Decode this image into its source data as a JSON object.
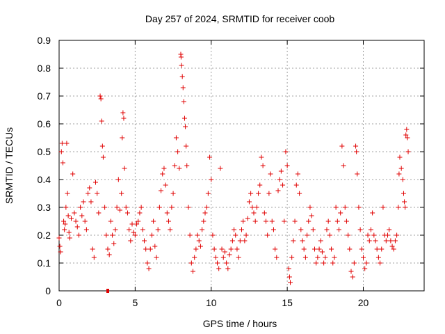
{
  "chart_data": {
    "type": "scatter",
    "title": "Day 257 of 2024, SRMTID for receiver coob",
    "xlabel": "GPS time / hours",
    "ylabel": "SRMTID / TECUs",
    "xlim": [
      0,
      24
    ],
    "ylim": [
      0,
      0.9
    ],
    "xticks": [
      0,
      5,
      10,
      15,
      20
    ],
    "xtick_labels": [
      "0",
      "5",
      "10",
      "15",
      "20"
    ],
    "yticks": [
      0,
      0.1,
      0.2,
      0.3,
      0.4,
      0.5,
      0.6,
      0.7,
      0.8,
      0.9
    ],
    "ytick_labels": [
      "0",
      "0.1",
      "0.2",
      "0.3",
      "0.4",
      "0.5",
      "0.6",
      "0.7",
      "0.8",
      "0.9"
    ],
    "grid": true,
    "marker": "+",
    "series_color": "#e00000",
    "series": [
      {
        "name": "SRMTID",
        "points": [
          [
            0.0,
            0.19
          ],
          [
            0.05,
            0.16
          ],
          [
            0.1,
            0.14
          ],
          [
            0.15,
            0.5
          ],
          [
            0.2,
            0.53
          ],
          [
            0.25,
            0.46
          ],
          [
            0.3,
            0.25
          ],
          [
            0.35,
            0.22
          ],
          [
            0.4,
            0.24
          ],
          [
            0.45,
            0.3
          ],
          [
            0.5,
            0.53
          ],
          [
            0.55,
            0.35
          ],
          [
            0.6,
            0.27
          ],
          [
            0.65,
            0.21
          ],
          [
            0.7,
            0.19
          ],
          [
            0.8,
            0.26
          ],
          [
            0.9,
            0.42
          ],
          [
            1.0,
            0.28
          ],
          [
            1.1,
            0.25
          ],
          [
            1.2,
            0.23
          ],
          [
            1.3,
            0.2
          ],
          [
            1.4,
            0.3
          ],
          [
            1.5,
            0.27
          ],
          [
            1.6,
            0.32
          ],
          [
            1.7,
            0.25
          ],
          [
            1.8,
            0.22
          ],
          [
            1.9,
            0.35
          ],
          [
            2.0,
            0.37
          ],
          [
            2.1,
            0.32
          ],
          [
            2.2,
            0.15
          ],
          [
            2.3,
            0.12
          ],
          [
            2.4,
            0.39
          ],
          [
            2.5,
            0.35
          ],
          [
            2.6,
            0.28
          ],
          [
            2.7,
            0.7
          ],
          [
            2.75,
            0.69
          ],
          [
            2.8,
            0.61
          ],
          [
            2.85,
            0.52
          ],
          [
            2.9,
            0.48
          ],
          [
            3.0,
            0.3
          ],
          [
            3.1,
            0.2
          ],
          [
            3.2,
            0.15
          ],
          [
            3.3,
            0.13
          ],
          [
            3.4,
            0.25
          ],
          [
            3.5,
            0.2
          ],
          [
            3.6,
            0.17
          ],
          [
            3.7,
            0.22
          ],
          [
            3.8,
            0.3
          ],
          [
            3.9,
            0.4
          ],
          [
            4.0,
            0.29
          ],
          [
            4.1,
            0.35
          ],
          [
            4.15,
            0.55
          ],
          [
            4.2,
            0.64
          ],
          [
            4.25,
            0.62
          ],
          [
            4.3,
            0.44
          ],
          [
            4.4,
            0.3
          ],
          [
            4.5,
            0.28
          ],
          [
            4.6,
            0.22
          ],
          [
            4.7,
            0.18
          ],
          [
            4.8,
            0.24
          ],
          [
            4.9,
            0.21
          ],
          [
            5.0,
            0.2
          ],
          [
            5.1,
            0.24
          ],
          [
            5.2,
            0.25
          ],
          [
            5.3,
            0.28
          ],
          [
            5.4,
            0.3
          ],
          [
            5.5,
            0.22
          ],
          [
            5.6,
            0.18
          ],
          [
            5.7,
            0.15
          ],
          [
            5.8,
            0.1
          ],
          [
            5.9,
            0.08
          ],
          [
            6.0,
            0.15
          ],
          [
            6.1,
            0.2
          ],
          [
            6.2,
            0.25
          ],
          [
            6.3,
            0.16
          ],
          [
            6.4,
            0.12
          ],
          [
            6.5,
            0.22
          ],
          [
            6.6,
            0.3
          ],
          [
            6.7,
            0.36
          ],
          [
            6.8,
            0.42
          ],
          [
            6.9,
            0.44
          ],
          [
            7.0,
            0.38
          ],
          [
            7.1,
            0.28
          ],
          [
            7.2,
            0.25
          ],
          [
            7.3,
            0.22
          ],
          [
            7.4,
            0.3
          ],
          [
            7.5,
            0.35
          ],
          [
            7.6,
            0.45
          ],
          [
            7.7,
            0.55
          ],
          [
            7.8,
            0.5
          ],
          [
            7.9,
            0.44
          ],
          [
            8.0,
            0.85
          ],
          [
            8.02,
            0.84
          ],
          [
            8.05,
            0.81
          ],
          [
            8.1,
            0.77
          ],
          [
            8.15,
            0.73
          ],
          [
            8.2,
            0.68
          ],
          [
            8.25,
            0.62
          ],
          [
            8.3,
            0.59
          ],
          [
            8.35,
            0.52
          ],
          [
            8.4,
            0.45
          ],
          [
            8.5,
            0.3
          ],
          [
            8.6,
            0.2
          ],
          [
            8.7,
            0.1
          ],
          [
            8.8,
            0.07
          ],
          [
            8.9,
            0.12
          ],
          [
            9.0,
            0.15
          ],
          [
            9.1,
            0.2
          ],
          [
            9.2,
            0.18
          ],
          [
            9.3,
            0.16
          ],
          [
            9.4,
            0.22
          ],
          [
            9.5,
            0.25
          ],
          [
            9.6,
            0.28
          ],
          [
            9.7,
            0.3
          ],
          [
            9.8,
            0.35
          ],
          [
            9.9,
            0.48
          ],
          [
            10.0,
            0.4
          ],
          [
            10.1,
            0.2
          ],
          [
            10.2,
            0.15
          ],
          [
            10.3,
            0.12
          ],
          [
            10.4,
            0.1
          ],
          [
            10.5,
            0.08
          ],
          [
            10.6,
            0.44
          ],
          [
            10.7,
            0.15
          ],
          [
            10.8,
            0.12
          ],
          [
            10.9,
            0.14
          ],
          [
            11.0,
            0.1
          ],
          [
            11.1,
            0.08
          ],
          [
            11.2,
            0.13
          ],
          [
            11.3,
            0.15
          ],
          [
            11.4,
            0.18
          ],
          [
            11.5,
            0.22
          ],
          [
            11.6,
            0.2
          ],
          [
            11.7,
            0.15
          ],
          [
            11.8,
            0.12
          ],
          [
            11.9,
            0.18
          ],
          [
            12.0,
            0.22
          ],
          [
            12.1,
            0.25
          ],
          [
            12.2,
            0.18
          ],
          [
            12.3,
            0.2
          ],
          [
            12.4,
            0.26
          ],
          [
            12.5,
            0.32
          ],
          [
            12.6,
            0.35
          ],
          [
            12.7,
            0.3
          ],
          [
            12.8,
            0.28
          ],
          [
            12.9,
            0.25
          ],
          [
            13.0,
            0.3
          ],
          [
            13.1,
            0.35
          ],
          [
            13.2,
            0.38
          ],
          [
            13.3,
            0.48
          ],
          [
            13.4,
            0.45
          ],
          [
            13.5,
            0.28
          ],
          [
            13.6,
            0.25
          ],
          [
            13.7,
            0.2
          ],
          [
            13.8,
            0.35
          ],
          [
            13.9,
            0.42
          ],
          [
            14.0,
            0.25
          ],
          [
            14.1,
            0.22
          ],
          [
            14.2,
            0.15
          ],
          [
            14.3,
            0.12
          ],
          [
            14.4,
            0.36
          ],
          [
            14.5,
            0.4
          ],
          [
            14.6,
            0.43
          ],
          [
            14.7,
            0.38
          ],
          [
            14.8,
            0.25
          ],
          [
            14.9,
            0.5
          ],
          [
            15.0,
            0.45
          ],
          [
            15.1,
            0.08
          ],
          [
            15.15,
            0.05
          ],
          [
            15.2,
            0.03
          ],
          [
            15.3,
            0.12
          ],
          [
            15.4,
            0.18
          ],
          [
            15.5,
            0.25
          ],
          [
            15.6,
            0.38
          ],
          [
            15.7,
            0.42
          ],
          [
            15.8,
            0.35
          ],
          [
            15.9,
            0.22
          ],
          [
            16.0,
            0.18
          ],
          [
            16.1,
            0.15
          ],
          [
            16.2,
            0.12
          ],
          [
            16.3,
            0.2
          ],
          [
            16.4,
            0.25
          ],
          [
            16.5,
            0.3
          ],
          [
            16.6,
            0.27
          ],
          [
            16.7,
            0.22
          ],
          [
            16.8,
            0.15
          ],
          [
            16.9,
            0.1
          ],
          [
            17.0,
            0.12
          ],
          [
            17.1,
            0.15
          ],
          [
            17.2,
            0.18
          ],
          [
            17.3,
            0.14
          ],
          [
            17.4,
            0.1
          ],
          [
            17.5,
            0.12
          ],
          [
            17.6,
            0.22
          ],
          [
            17.7,
            0.25
          ],
          [
            17.8,
            0.2
          ],
          [
            17.9,
            0.15
          ],
          [
            18.0,
            0.1
          ],
          [
            18.1,
            0.12
          ],
          [
            18.2,
            0.3
          ],
          [
            18.3,
            0.25
          ],
          [
            18.4,
            0.22
          ],
          [
            18.5,
            0.28
          ],
          [
            18.6,
            0.52
          ],
          [
            18.7,
            0.45
          ],
          [
            18.8,
            0.3
          ],
          [
            18.9,
            0.25
          ],
          [
            19.0,
            0.2
          ],
          [
            19.1,
            0.15
          ],
          [
            19.2,
            0.07
          ],
          [
            19.3,
            0.05
          ],
          [
            19.4,
            0.1
          ],
          [
            19.5,
            0.52
          ],
          [
            19.55,
            0.5
          ],
          [
            19.6,
            0.42
          ],
          [
            19.7,
            0.3
          ],
          [
            19.8,
            0.22
          ],
          [
            19.9,
            0.15
          ],
          [
            20.0,
            0.12
          ],
          [
            20.1,
            0.08
          ],
          [
            20.2,
            0.1
          ],
          [
            20.3,
            0.2
          ],
          [
            20.4,
            0.18
          ],
          [
            20.5,
            0.22
          ],
          [
            20.6,
            0.28
          ],
          [
            20.7,
            0.2
          ],
          [
            20.8,
            0.18
          ],
          [
            20.9,
            0.15
          ],
          [
            21.0,
            0.12
          ],
          [
            21.1,
            0.1
          ],
          [
            21.2,
            0.15
          ],
          [
            21.3,
            0.3
          ],
          [
            21.4,
            0.2
          ],
          [
            21.5,
            0.18
          ],
          [
            21.6,
            0.2
          ],
          [
            21.7,
            0.22
          ],
          [
            21.8,
            0.18
          ],
          [
            21.9,
            0.16
          ],
          [
            22.0,
            0.15
          ],
          [
            22.1,
            0.18
          ],
          [
            22.2,
            0.2
          ],
          [
            22.3,
            0.3
          ],
          [
            22.35,
            0.42
          ],
          [
            22.4,
            0.48
          ],
          [
            22.5,
            0.44
          ],
          [
            22.6,
            0.4
          ],
          [
            22.65,
            0.35
          ],
          [
            22.7,
            0.32
          ],
          [
            22.75,
            0.3
          ],
          [
            22.8,
            0.56
          ],
          [
            22.85,
            0.58
          ],
          [
            22.9,
            0.55
          ],
          [
            22.95,
            0.5
          ]
        ]
      }
    ],
    "outlier_marker": {
      "x": 3.2,
      "y": 0.0
    }
  }
}
